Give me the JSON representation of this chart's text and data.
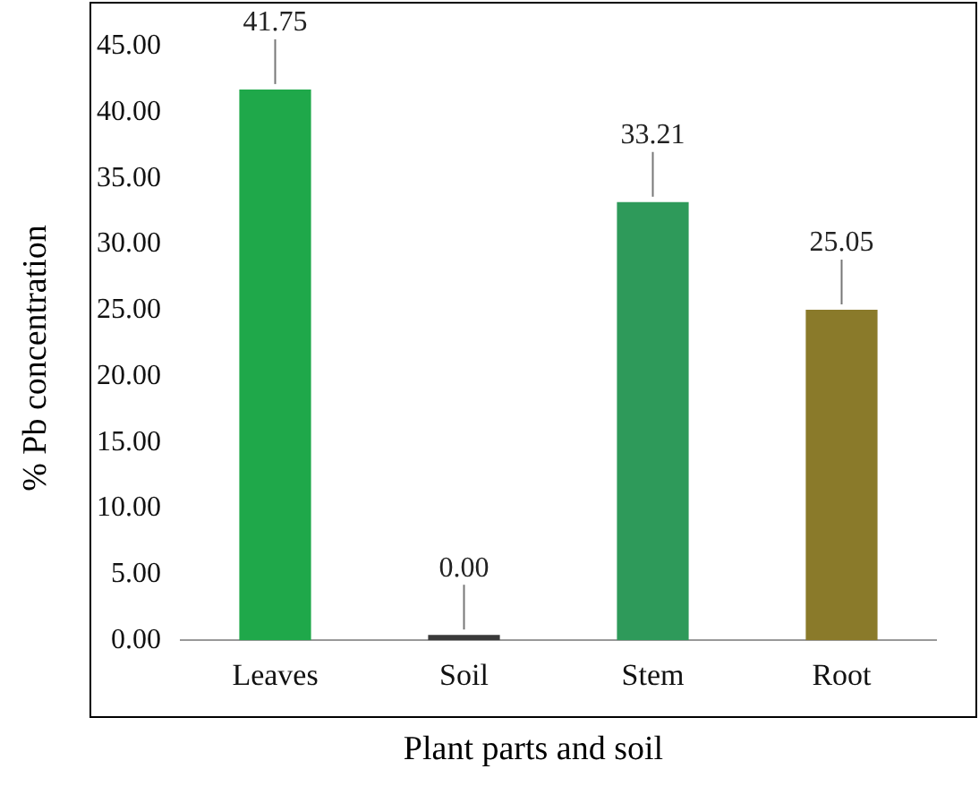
{
  "chart_data": {
    "type": "bar",
    "xlabel": "Plant parts and soil",
    "ylabel": "% Pb concentration",
    "categories": [
      "Leaves",
      "Soil",
      "Stem",
      "Root"
    ],
    "values": [
      41.75,
      0,
      33.21,
      25.05
    ],
    "colors": [
      "#1fa84a",
      "#3a3a3a",
      "#2e9a5a",
      "#8a7a2a"
    ],
    "value_labels": [
      "41.75",
      "0.00",
      "33.21",
      "25.05"
    ],
    "ylim": [
      0,
      45
    ],
    "yticks": [
      {
        "value": 0,
        "label": "0.00"
      },
      {
        "value": 5,
        "label": "5.00"
      },
      {
        "value": 10,
        "label": "10.00"
      },
      {
        "value": 15,
        "label": "15.00"
      },
      {
        "value": 20,
        "label": "20.00"
      },
      {
        "value": 25,
        "label": "25.00"
      },
      {
        "value": 30,
        "label": "30.00"
      },
      {
        "value": 35,
        "label": "35.00"
      },
      {
        "value": 40,
        "label": "40.00"
      },
      {
        "value": 45,
        "label": "45.00"
      }
    ],
    "grid": false,
    "legend": false
  }
}
